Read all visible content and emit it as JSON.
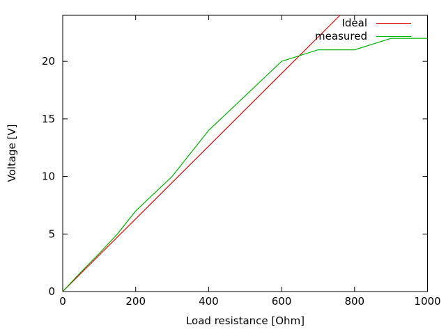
{
  "figure": {
    "background": "#ffffff",
    "frame_color": "#000000"
  },
  "axes": {
    "xlabel": "Load resistance [Ohm]",
    "ylabel": "Voltage [V]",
    "xlim": [
      0,
      1000
    ],
    "ylim": [
      0,
      24
    ],
    "xticks": [
      0,
      200,
      400,
      600,
      800,
      1000
    ],
    "yticks": [
      0,
      5,
      10,
      15,
      20
    ],
    "tick_style": "inward, mirrored on top and right borders",
    "grid": false
  },
  "legend": {
    "position": "top-right-inside",
    "entries": [
      {
        "label": "Ideal",
        "color": "#e60000"
      },
      {
        "label": "measured",
        "color": "#00b400"
      }
    ]
  },
  "chart_data": {
    "type": "line",
    "title": "",
    "xlabel": "Load resistance [Ohm]",
    "ylabel": "Voltage [V]",
    "xlim": [
      0,
      1000
    ],
    "ylim": [
      0,
      24
    ],
    "grid": false,
    "legend_position": "top-right-inside",
    "series": [
      {
        "name": "Ideal",
        "color": "#e60000",
        "x": [
          0,
          760
        ],
        "y": [
          0,
          24
        ],
        "note": "straight line ~31.6 mV/Ohm, clipped at plot top near 760 Ohm"
      },
      {
        "name": "measured",
        "color": "#00b400",
        "x": [
          0,
          50,
          100,
          150,
          200,
          300,
          400,
          500,
          600,
          700,
          800,
          900,
          1000
        ],
        "y": [
          0,
          1.7,
          3.3,
          5,
          7,
          10,
          14,
          17,
          20,
          21,
          21,
          22,
          22
        ]
      }
    ]
  }
}
